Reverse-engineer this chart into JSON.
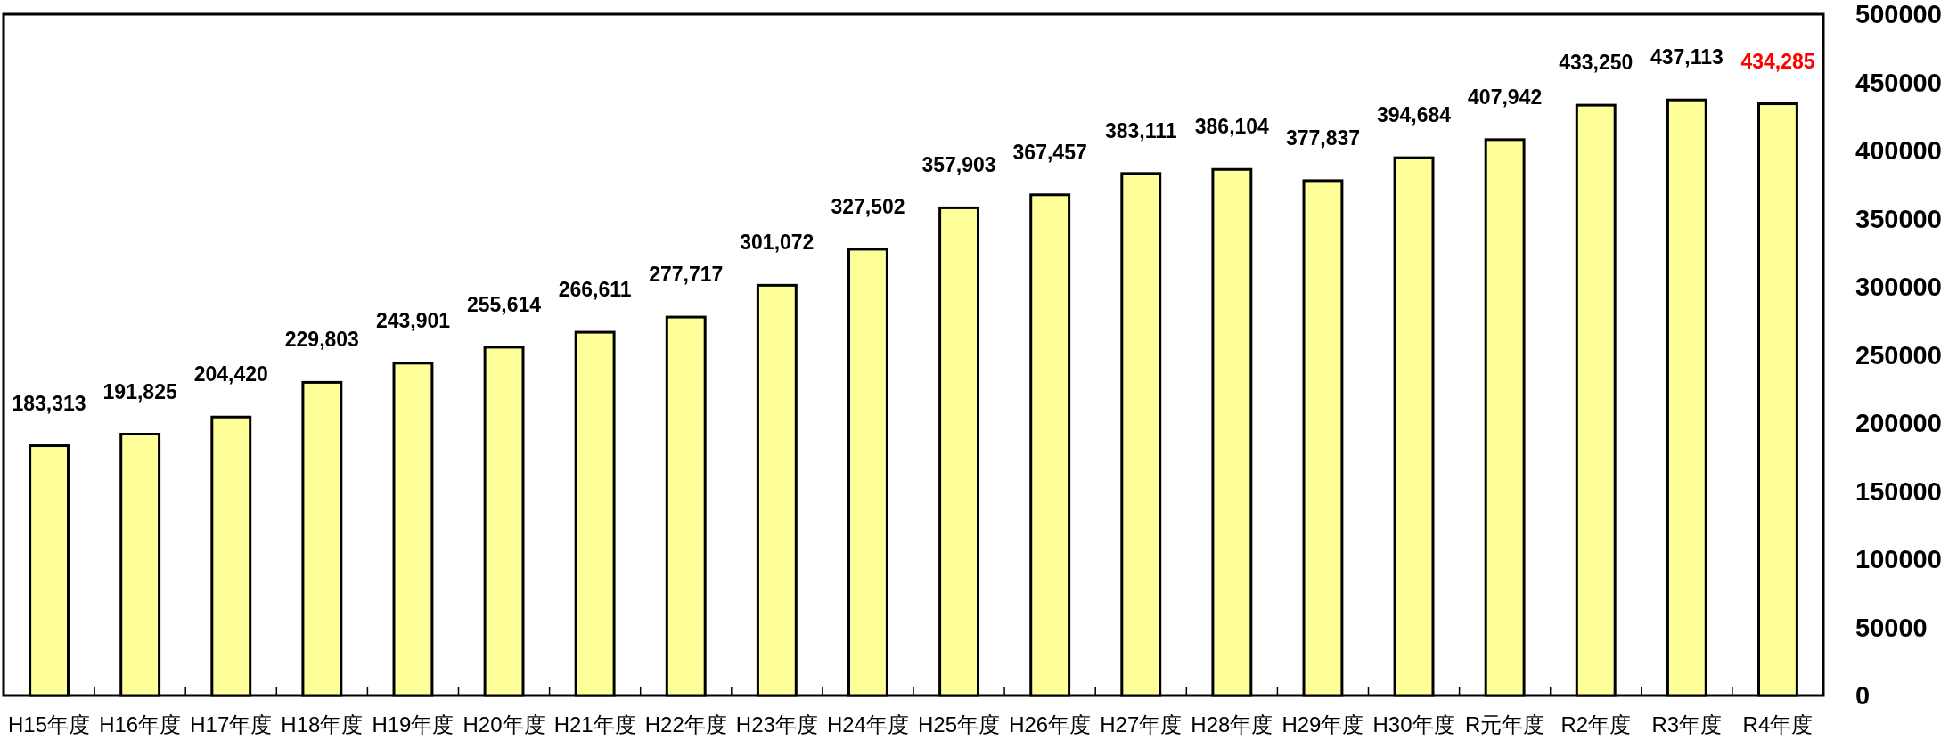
{
  "chart_data": {
    "type": "bar",
    "categories": [
      "H15年度",
      "H16年度",
      "H17年度",
      "H18年度",
      "H19年度",
      "H20年度",
      "H21年度",
      "H22年度",
      "H23年度",
      "H24年度",
      "H25年度",
      "H26年度",
      "H27年度",
      "H28年度",
      "H29年度",
      "H30年度",
      "R元年度",
      "R2年度",
      "R3年度",
      "R4年度"
    ],
    "values": [
      183313,
      191825,
      204420,
      229803,
      243901,
      255614,
      266611,
      277717,
      301072,
      327502,
      357903,
      367457,
      383111,
      386104,
      377837,
      394684,
      407942,
      433250,
      437113,
      434285
    ],
    "color": "#ffff99",
    "value_labels": [
      "183,313",
      "191,825",
      "204,420",
      "229,803",
      "243,901",
      "255,614",
      "266,611",
      "277,717",
      "301,072",
      "327,502",
      "357,903",
      "367,457",
      "383,111",
      "386,104",
      "377,837",
      "394,684",
      "407,942",
      "433,250",
      "437,113",
      null
    ],
    "annotations": [
      {
        "text": "434,285",
        "x": "R4年度",
        "y": 434285
      }
    ],
    "ylim": [
      0,
      500000
    ],
    "yticks": [
      0,
      50000,
      100000,
      150000,
      200000,
      250000,
      300000,
      350000,
      400000,
      450000,
      500000
    ]
  }
}
